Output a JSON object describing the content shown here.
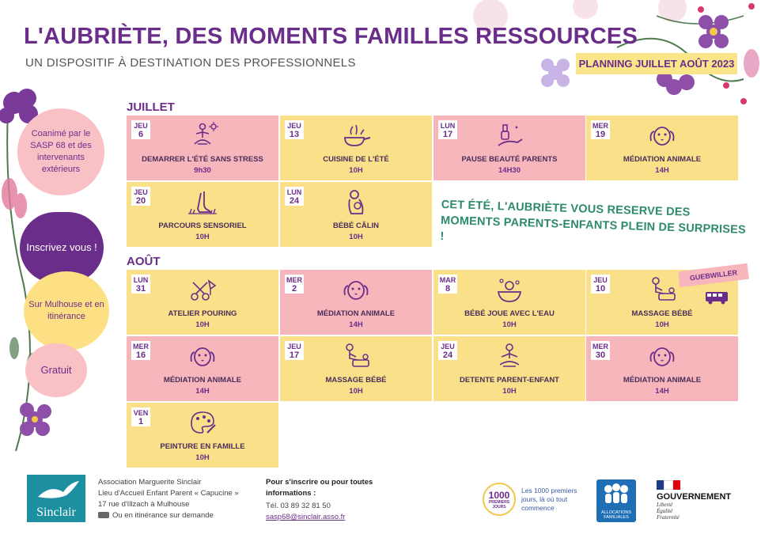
{
  "header": {
    "title": "L'AUBRIÈTE, DES MOMENTS FAMILLES RESSOURCES",
    "subtitle": "UN DISPOSITIF À DESTINATION DES PROFESSIONNELS",
    "planning": "PLANNING JUILLET  AOÛT 2023"
  },
  "sidebar": {
    "coanime": "Coanimé par le SASP 68 et des intervenants extérieurs",
    "inscrivez": "Inscrivez vous !",
    "lieu": "Sur Mulhouse et en itinérance",
    "gratuit": "Gratuit"
  },
  "juillet": {
    "label": "JUILLET",
    "events": [
      {
        "day": "JEU",
        "num": "6",
        "name": "DEMARRER L'ÉTÉ SANS STRESS",
        "time": "9h30",
        "icon": "yoga-sun-icon"
      },
      {
        "day": "JEU",
        "num": "13",
        "name": "CUISINE DE L'ÉTÉ",
        "time": "10H",
        "icon": "cooking-pan-icon"
      },
      {
        "day": "LUN",
        "num": "17",
        "name": "PAUSE BEAUTÉ PARENTS",
        "time": "14H30",
        "icon": "nail-polish-icon"
      },
      {
        "day": "MER",
        "num": "19",
        "name": "MÉDIATION ANIMALE",
        "time": "14H",
        "icon": "dog-icon"
      },
      {
        "day": "JEU",
        "num": "20",
        "name": "PARCOURS SENSORIEL",
        "time": "10H",
        "icon": "foot-grass-icon"
      },
      {
        "day": "LUN",
        "num": "24",
        "name": "BÉBÉ CÂLIN",
        "time": "10H",
        "icon": "mother-baby-icon"
      }
    ]
  },
  "promo": "CET ÉTÉ, L'AUBRIÈTE VOUS RESERVE DES MOMENTS PARENTS-ENFANTS PLEIN DE SURPRISES !",
  "aout": {
    "label": "AOÛT",
    "gueb": "GUEBWILLER",
    "events": [
      {
        "day": "LUN",
        "num": "31",
        "name": "ATELIER POURING",
        "time": "10H",
        "icon": "paint-pouring-icon"
      },
      {
        "day": "MER",
        "num": "2",
        "name": "MÉDIATION ANIMALE",
        "time": "14H",
        "icon": "dog-icon"
      },
      {
        "day": "MAR",
        "num": "8",
        "name": "BÉBÉ JOUE AVEC L'EAU",
        "time": "10H",
        "icon": "baby-bath-icon"
      },
      {
        "day": "JEU",
        "num": "10",
        "name": "MASSAGE BÉBÉ",
        "time": "10H",
        "icon": "baby-massage-icon"
      },
      {
        "day": "MER",
        "num": "16",
        "name": "MÉDIATION ANIMALE",
        "time": "14H",
        "icon": "dog-icon"
      },
      {
        "day": "JEU",
        "num": "17",
        "name": "MASSAGE BÉBÉ",
        "time": "10H",
        "icon": "baby-massage-icon"
      },
      {
        "day": "JEU",
        "num": "24",
        "name": "DETENTE PARENT-ENFANT",
        "time": "10H",
        "icon": "meditation-icon"
      },
      {
        "day": "MER",
        "num": "30",
        "name": "MÉDIATION ANIMALE",
        "time": "14H",
        "icon": "dog-icon"
      },
      {
        "day": "VEN",
        "num": "1",
        "name": "PEINTURE EN FAMILLE",
        "time": "10H",
        "icon": "palette-icon"
      }
    ]
  },
  "footer": {
    "logo": "Sinclair",
    "assoc1": "Association Marguerite Sinclair",
    "assoc2": "Lieu d'Accueil Enfant Parent « Capucine »",
    "assoc3": "17 rue d'Illzach à Mulhouse",
    "assoc4": "Ou en itinérance sur demande",
    "inscr1": "Pour s'inscrire ou pour toutes",
    "inscr2": "informations :",
    "tel": "Tél. 03 89 32 81 50",
    "email": "sasp68@sinclair.asso.fr",
    "logo1000": "1000",
    "logo1000b": "PREMIERS JOURS",
    "mille1": "Les 1000 premiers",
    "mille2": "jours, là où tout",
    "mille3": "commence",
    "caf": "ALLOCATIONS FAMILIALES",
    "gouv": "GOUVERNEMENT",
    "devise1": "Liberté",
    "devise2": "Égalité",
    "devise3": "Fraternité"
  },
  "colors": {
    "purple": "#6b2d8a",
    "yellow": "#fbe08a",
    "pink": "#f7b6bb",
    "green": "#2d8a6b"
  }
}
